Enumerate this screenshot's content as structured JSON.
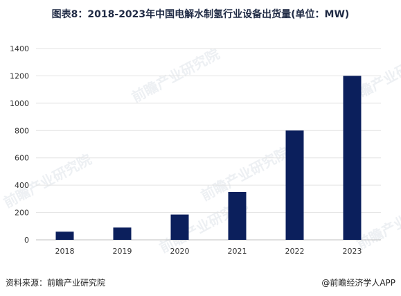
{
  "page": {
    "title": "图表8：2018-2023年中国电解水制氢行业设备出货量(单位：MW)",
    "source": "资料来源：前瞻产业研究院",
    "credit": "@前瞻经济学人APP",
    "watermark_text": "前瞻产业研究院"
  },
  "chart_data": {
    "type": "bar",
    "title": "图表8：2018-2023年中国电解水制氢行业设备出货量(单位：MW)",
    "categories": [
      "2018",
      "2019",
      "2020",
      "2021",
      "2022",
      "2023"
    ],
    "values": [
      60,
      90,
      185,
      350,
      800,
      1200
    ],
    "ylim": [
      0,
      1400
    ],
    "yticks": [
      0,
      200,
      400,
      600,
      800,
      1000,
      1200,
      1400
    ],
    "grid": true,
    "legend": "none",
    "bar_color": "#0b1f5c"
  }
}
